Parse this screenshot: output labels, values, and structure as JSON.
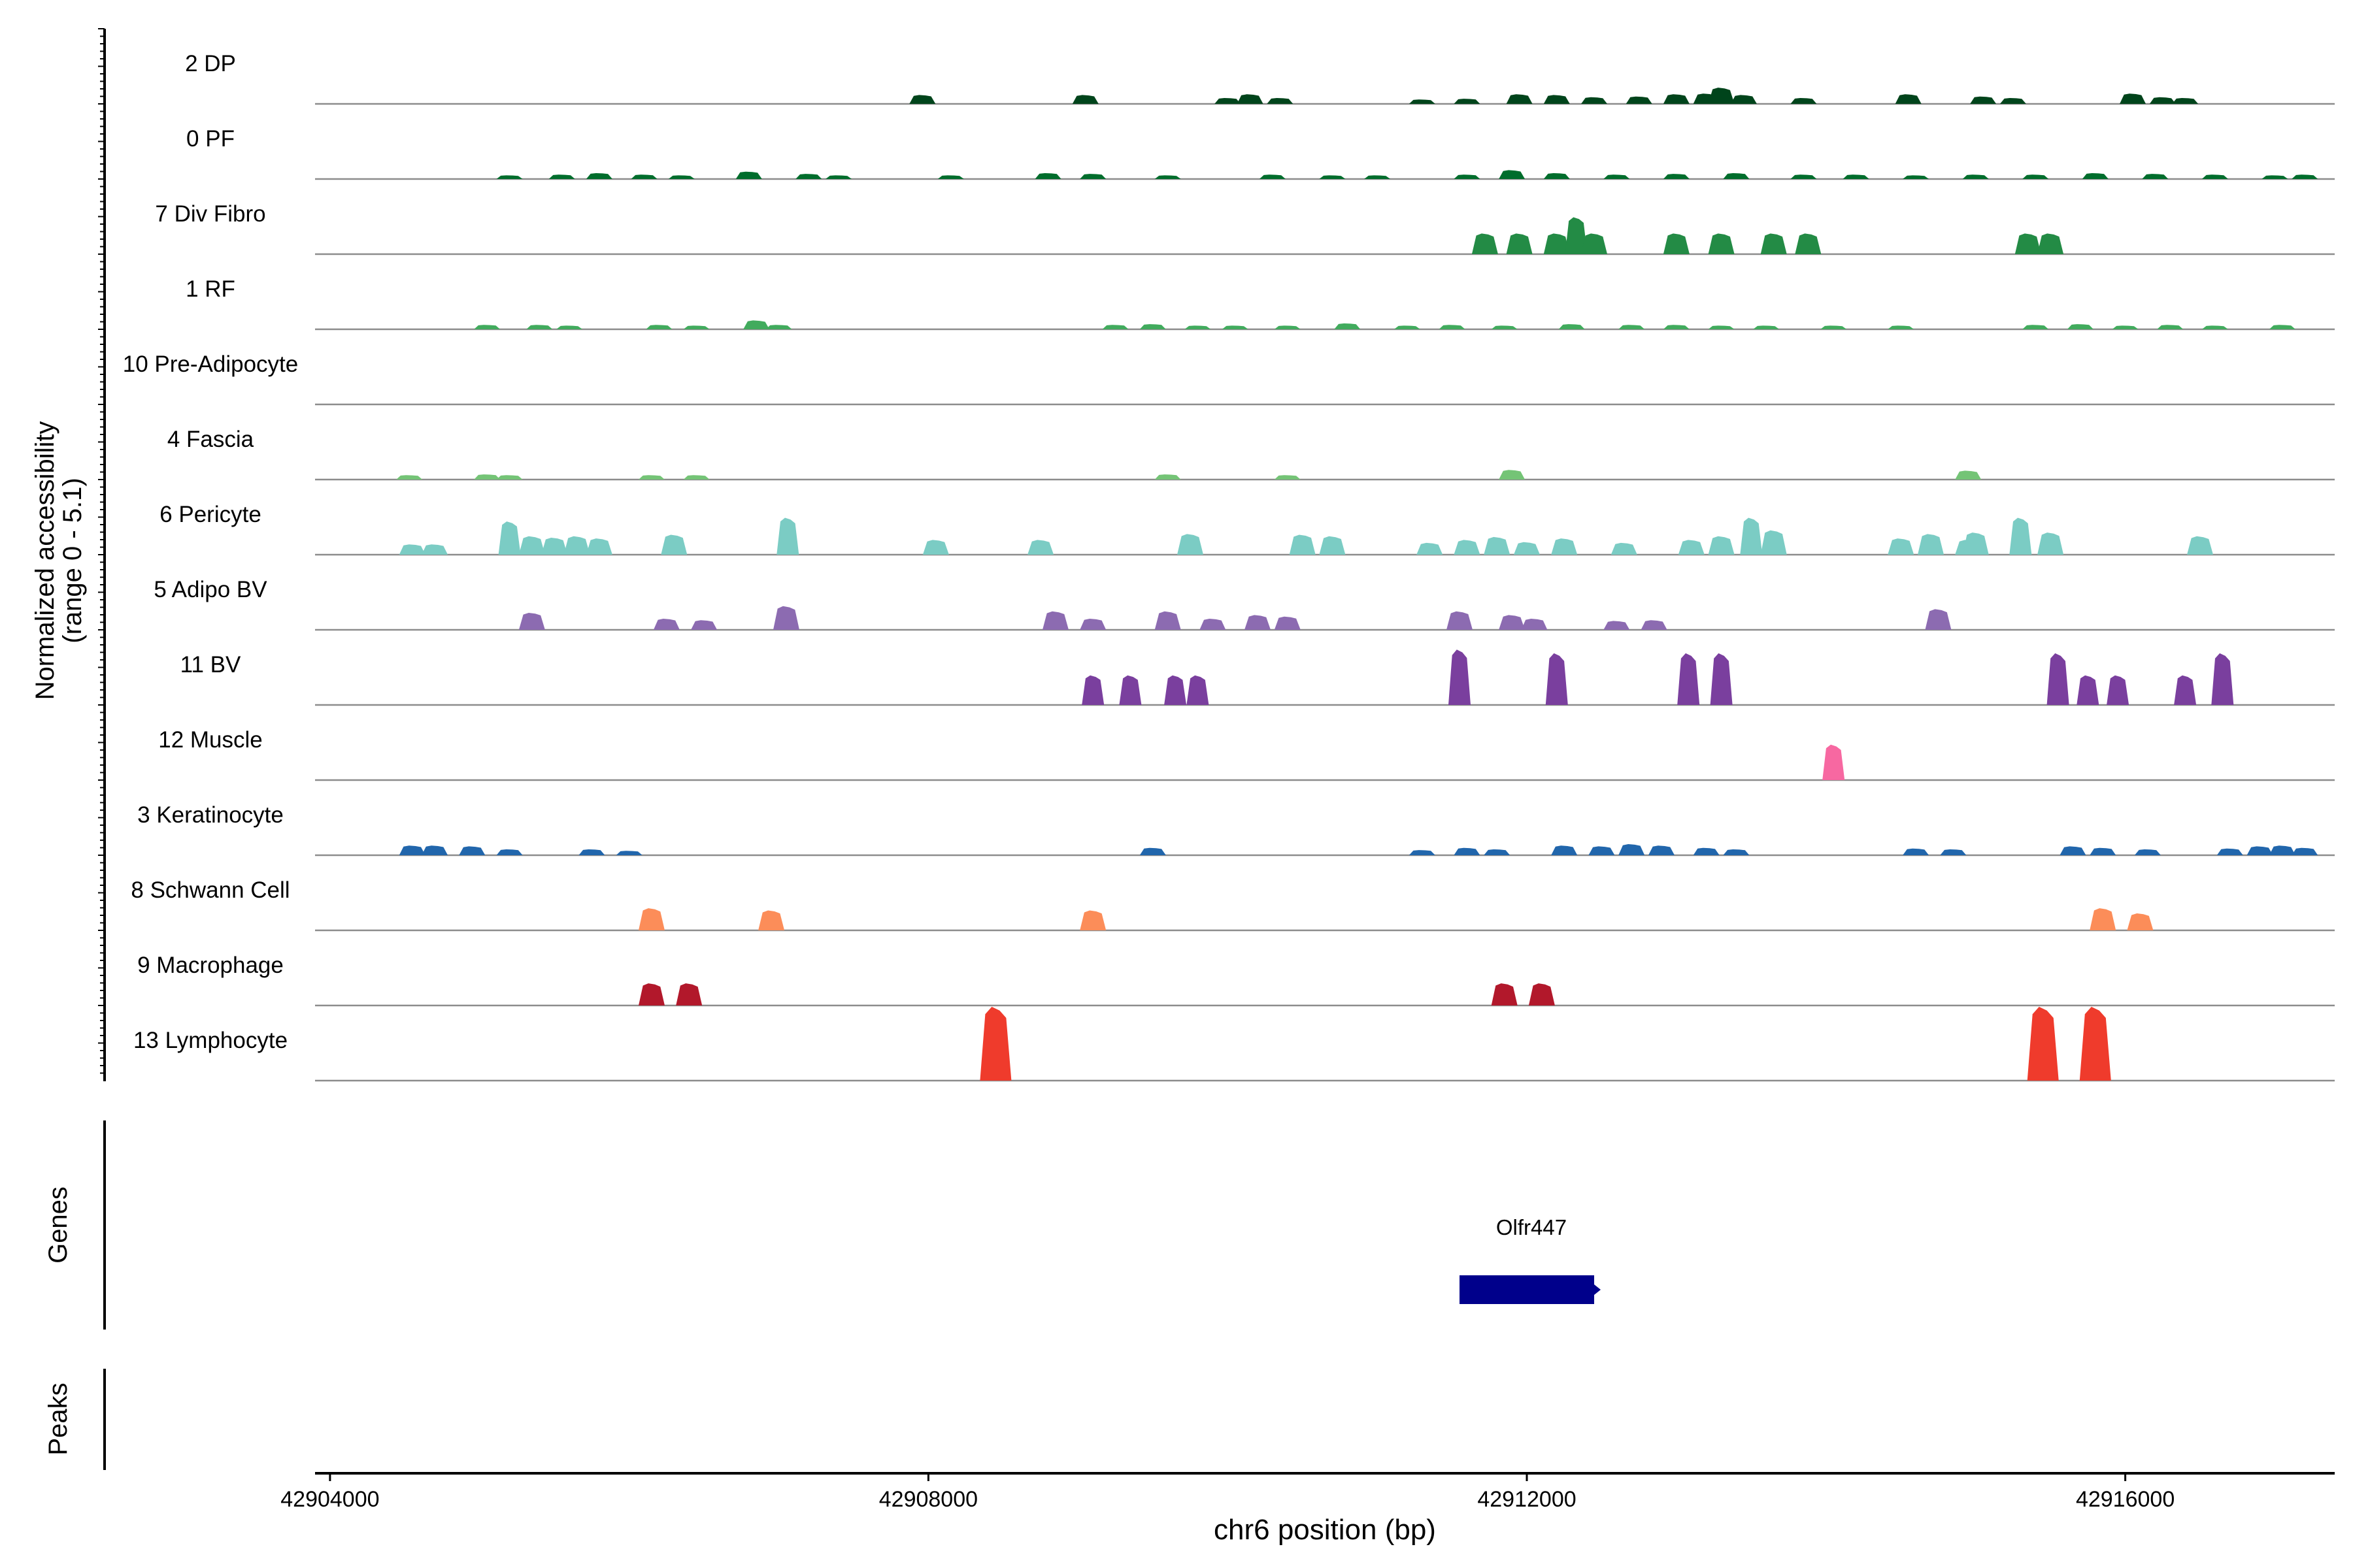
{
  "chart_data": {
    "type": "area",
    "ylabel": [
      "Normalized accessibility",
      "(range 0 - 5.1)"
    ],
    "xlabel": "chr6 position (bp)",
    "xlim": [
      42903900,
      42917400
    ],
    "xticks": [
      42904000,
      42908000,
      42912000,
      42916000
    ],
    "xtick_labels": [
      "42904000",
      "42908000",
      "42912000",
      "42916000"
    ],
    "tracks": [
      {
        "label": "2 DP",
        "color": "#00441b",
        "peaks": [
          [
            42907960,
            0.12
          ],
          [
            42909050,
            0.12
          ],
          [
            42910000,
            0.08
          ],
          [
            42910150,
            0.13
          ],
          [
            42910350,
            0.08
          ],
          [
            42911300,
            0.06
          ],
          [
            42911600,
            0.07
          ],
          [
            42911950,
            0.13
          ],
          [
            42912200,
            0.12
          ],
          [
            42912450,
            0.09
          ],
          [
            42912750,
            0.1
          ],
          [
            42913000,
            0.13
          ],
          [
            42913200,
            0.14
          ],
          [
            42913300,
            0.22
          ],
          [
            42913450,
            0.12
          ],
          [
            42913850,
            0.08
          ],
          [
            42914550,
            0.13
          ],
          [
            42915050,
            0.1
          ],
          [
            42915250,
            0.08
          ],
          [
            42916050,
            0.14
          ],
          [
            42916250,
            0.09
          ],
          [
            42916400,
            0.08
          ]
        ]
      },
      {
        "label": "0 PF",
        "color": "#006d2c",
        "peaks": [
          [
            42905200,
            0.05
          ],
          [
            42905550,
            0.06
          ],
          [
            42905800,
            0.08
          ],
          [
            42906100,
            0.06
          ],
          [
            42906350,
            0.05
          ],
          [
            42906800,
            0.1
          ],
          [
            42907200,
            0.07
          ],
          [
            42907400,
            0.05
          ],
          [
            42908150,
            0.05
          ],
          [
            42908800,
            0.08
          ],
          [
            42909100,
            0.07
          ],
          [
            42909600,
            0.05
          ],
          [
            42910300,
            0.06
          ],
          [
            42910700,
            0.05
          ],
          [
            42911000,
            0.05
          ],
          [
            42911600,
            0.06
          ],
          [
            42911900,
            0.12
          ],
          [
            42912200,
            0.08
          ],
          [
            42912600,
            0.06
          ],
          [
            42913000,
            0.07
          ],
          [
            42913400,
            0.08
          ],
          [
            42913850,
            0.06
          ],
          [
            42914200,
            0.06
          ],
          [
            42914600,
            0.05
          ],
          [
            42915000,
            0.06
          ],
          [
            42915400,
            0.06
          ],
          [
            42915800,
            0.08
          ],
          [
            42916200,
            0.07
          ],
          [
            42916600,
            0.06
          ],
          [
            42917000,
            0.05
          ],
          [
            42917200,
            0.06
          ]
        ]
      },
      {
        "label": "7 Div Fibro",
        "color": "#238b45",
        "peaks": [
          [
            42911720,
            0.28
          ],
          [
            42911950,
            0.28
          ],
          [
            42912200,
            0.28
          ],
          [
            42912330,
            0.5
          ],
          [
            42912450,
            0.28
          ],
          [
            42913000,
            0.28
          ],
          [
            42913300,
            0.28
          ],
          [
            42913650,
            0.28
          ],
          [
            42913880,
            0.28
          ],
          [
            42915350,
            0.28
          ],
          [
            42915500,
            0.28
          ]
        ]
      },
      {
        "label": "1 RF",
        "color": "#41ab5d",
        "peaks": [
          [
            42905050,
            0.06
          ],
          [
            42905400,
            0.06
          ],
          [
            42905600,
            0.05
          ],
          [
            42906200,
            0.06
          ],
          [
            42906450,
            0.05
          ],
          [
            42906850,
            0.12
          ],
          [
            42907000,
            0.06
          ],
          [
            42909250,
            0.06
          ],
          [
            42909500,
            0.07
          ],
          [
            42909800,
            0.05
          ],
          [
            42910050,
            0.05
          ],
          [
            42910400,
            0.05
          ],
          [
            42910800,
            0.08
          ],
          [
            42911200,
            0.05
          ],
          [
            42911500,
            0.06
          ],
          [
            42911850,
            0.05
          ],
          [
            42912300,
            0.07
          ],
          [
            42912700,
            0.06
          ],
          [
            42913000,
            0.06
          ],
          [
            42913300,
            0.05
          ],
          [
            42913600,
            0.05
          ],
          [
            42914050,
            0.05
          ],
          [
            42914500,
            0.05
          ],
          [
            42915400,
            0.06
          ],
          [
            42915700,
            0.07
          ],
          [
            42916000,
            0.05
          ],
          [
            42916300,
            0.06
          ],
          [
            42916600,
            0.05
          ],
          [
            42917050,
            0.06
          ]
        ]
      },
      {
        "label": "10 Pre-Adipocyte",
        "color": "#74c476",
        "peaks": []
      },
      {
        "label": "4 Fascia",
        "color": "#74c476",
        "peaks": [
          [
            42904530,
            0.06
          ],
          [
            42905050,
            0.07
          ],
          [
            42905200,
            0.06
          ],
          [
            42906150,
            0.06
          ],
          [
            42906450,
            0.06
          ],
          [
            42909600,
            0.07
          ],
          [
            42910400,
            0.06
          ],
          [
            42911900,
            0.13
          ],
          [
            42914950,
            0.12
          ]
        ]
      },
      {
        "label": "6 Pericyte",
        "color": "#7bccc4",
        "peaks": [
          [
            42904550,
            0.14
          ],
          [
            42904700,
            0.14
          ],
          [
            42905200,
            0.45
          ],
          [
            42905350,
            0.25
          ],
          [
            42905500,
            0.23
          ],
          [
            42905650,
            0.25
          ],
          [
            42905800,
            0.22
          ],
          [
            42906300,
            0.27
          ],
          [
            42907060,
            0.5
          ],
          [
            42908050,
            0.2
          ],
          [
            42908750,
            0.2
          ],
          [
            42909750,
            0.28
          ],
          [
            42910500,
            0.27
          ],
          [
            42910700,
            0.25
          ],
          [
            42911350,
            0.16
          ],
          [
            42911600,
            0.2
          ],
          [
            42911800,
            0.24
          ],
          [
            42912000,
            0.17
          ],
          [
            42912250,
            0.22
          ],
          [
            42912650,
            0.16
          ],
          [
            42913100,
            0.2
          ],
          [
            42913300,
            0.25
          ],
          [
            42913500,
            0.5
          ],
          [
            42913650,
            0.33
          ],
          [
            42914500,
            0.22
          ],
          [
            42914700,
            0.28
          ],
          [
            42914950,
            0.2
          ],
          [
            42915000,
            0.3
          ],
          [
            42915300,
            0.5
          ],
          [
            42915500,
            0.3
          ],
          [
            42916500,
            0.25
          ]
        ]
      },
      {
        "label": "5 Adipo BV",
        "color": "#8c6bb1",
        "peaks": [
          [
            42905350,
            0.23
          ],
          [
            42906250,
            0.15
          ],
          [
            42906500,
            0.13
          ],
          [
            42907050,
            0.32
          ],
          [
            42908850,
            0.25
          ],
          [
            42909100,
            0.15
          ],
          [
            42909600,
            0.25
          ],
          [
            42909900,
            0.15
          ],
          [
            42910200,
            0.2
          ],
          [
            42910400,
            0.18
          ],
          [
            42911550,
            0.25
          ],
          [
            42911900,
            0.2
          ],
          [
            42912050,
            0.15
          ],
          [
            42912600,
            0.12
          ],
          [
            42912850,
            0.13
          ],
          [
            42914750,
            0.28
          ]
        ]
      },
      {
        "label": "11 BV",
        "color": "#7a3f9e",
        "peaks": [
          [
            42909100,
            0.4
          ],
          [
            42909350,
            0.4
          ],
          [
            42909650,
            0.4
          ],
          [
            42909800,
            0.4
          ],
          [
            42911550,
            0.75
          ],
          [
            42912200,
            0.7
          ],
          [
            42913080,
            0.7
          ],
          [
            42913300,
            0.7
          ],
          [
            42915550,
            0.7
          ],
          [
            42915750,
            0.4
          ],
          [
            42915950,
            0.4
          ],
          [
            42916400,
            0.4
          ],
          [
            42916650,
            0.7
          ]
        ]
      },
      {
        "label": "12 Muscle",
        "color": "#f768a1",
        "peaks": [
          [
            42914050,
            0.48
          ]
        ]
      },
      {
        "label": "3 Keratinocyte",
        "color": "#2166ac",
        "peaks": [
          [
            42904550,
            0.13
          ],
          [
            42904700,
            0.13
          ],
          [
            42904950,
            0.12
          ],
          [
            42905200,
            0.08
          ],
          [
            42905750,
            0.08
          ],
          [
            42906000,
            0.06
          ],
          [
            42909500,
            0.1
          ],
          [
            42911300,
            0.07
          ],
          [
            42911600,
            0.1
          ],
          [
            42911800,
            0.08
          ],
          [
            42912250,
            0.13
          ],
          [
            42912500,
            0.12
          ],
          [
            42912700,
            0.15
          ],
          [
            42912900,
            0.13
          ],
          [
            42913200,
            0.1
          ],
          [
            42913400,
            0.08
          ],
          [
            42914600,
            0.09
          ],
          [
            42914850,
            0.08
          ],
          [
            42915650,
            0.12
          ],
          [
            42915850,
            0.1
          ],
          [
            42916150,
            0.08
          ],
          [
            42916700,
            0.09
          ],
          [
            42916900,
            0.12
          ],
          [
            42917050,
            0.13
          ],
          [
            42917200,
            0.1
          ]
        ]
      },
      {
        "label": "8 Schwann Cell",
        "color": "#fc8d59",
        "peaks": [
          [
            42906150,
            0.3
          ],
          [
            42906950,
            0.27
          ],
          [
            42909100,
            0.27
          ],
          [
            42915850,
            0.3
          ],
          [
            42916100,
            0.23
          ]
        ]
      },
      {
        "label": "9 Macrophage",
        "color": "#b2182b",
        "peaks": [
          [
            42906150,
            0.3
          ],
          [
            42906400,
            0.3
          ],
          [
            42911850,
            0.3
          ],
          [
            42912100,
            0.3
          ]
        ]
      },
      {
        "label": "13 Lymphocyte",
        "color": "#ef3b2c",
        "peaks": [
          [
            42908450,
            1.0
          ],
          [
            42915450,
            1.0
          ],
          [
            42915800,
            1.0
          ]
        ]
      }
    ],
    "genes": [
      {
        "name": "Olfr447",
        "start": 42911550,
        "end": 42912450,
        "strand": "+",
        "color": "#00008b"
      }
    ],
    "panels": {
      "genes_label": "Genes",
      "peaks_label": "Peaks"
    }
  }
}
